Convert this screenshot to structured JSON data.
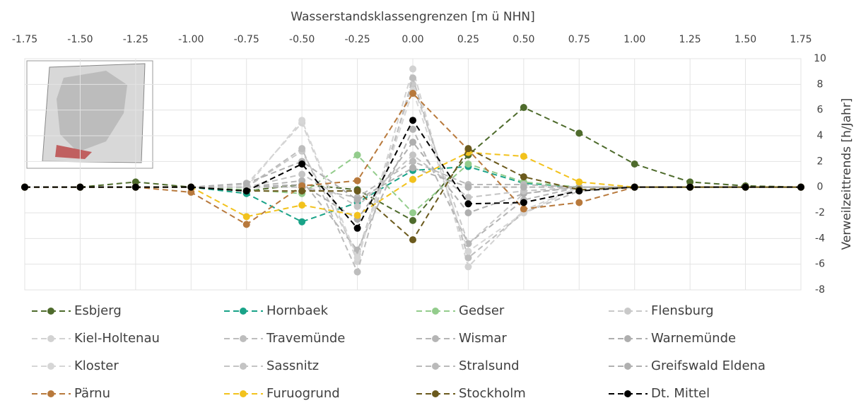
{
  "chart_data": {
    "type": "line",
    "x_label": "Wasserstandsklassengrenzen [m ü NHN]",
    "y_label": "Verweilzeittrends [h/Jahr]",
    "x": [
      -1.75,
      -1.5,
      -1.25,
      -1.0,
      -0.75,
      -0.5,
      -0.25,
      0.0,
      0.25,
      0.5,
      0.75,
      1.0,
      1.25,
      1.5,
      1.75
    ],
    "xlim": [
      -1.75,
      1.75
    ],
    "xticks": [
      {
        "value": -1.75,
        "label": "-1.75"
      },
      {
        "value": -1.5,
        "label": "-1.50"
      },
      {
        "value": -1.25,
        "label": "-1.25"
      },
      {
        "value": -1.0,
        "label": "-1.00"
      },
      {
        "value": -0.75,
        "label": "-0.75"
      },
      {
        "value": -0.5,
        "label": "-0.50"
      },
      {
        "value": -0.25,
        "label": "-0.25"
      },
      {
        "value": 0,
        "label": "0.00"
      },
      {
        "value": 0.25,
        "label": "0.25"
      },
      {
        "value": 0.5,
        "label": "0.50"
      },
      {
        "value": 0.75,
        "label": "0.75"
      },
      {
        "value": 1.0,
        "label": "1.00"
      },
      {
        "value": 1.25,
        "label": "1.25"
      },
      {
        "value": 1.5,
        "label": "1.50"
      },
      {
        "value": 1.75,
        "label": "1.75"
      }
    ],
    "ylim": [
      -8,
      10
    ],
    "yticks": [
      10,
      8,
      6,
      4,
      2,
      0,
      -2,
      -4,
      -6,
      -8
    ],
    "grid": true,
    "series": [
      {
        "name": "Esbjerg",
        "color": "#4e6b2c",
        "values": [
          0,
          0,
          0.4,
          0,
          -0.3,
          0.2,
          -0.2,
          -2.6,
          2.5,
          6.2,
          4.2,
          1.8,
          0.4,
          0.1,
          0
        ]
      },
      {
        "name": "Hornbaek",
        "color": "#19a388",
        "values": [
          0,
          0,
          0,
          0,
          -0.5,
          -2.7,
          -1.2,
          1.3,
          1.6,
          0.3,
          0,
          0,
          0,
          0,
          0
        ]
      },
      {
        "name": "Gedser",
        "color": "#93cc8c",
        "values": [
          0,
          0,
          0,
          0,
          -0.2,
          -0.5,
          2.5,
          -2.0,
          1.8,
          0.4,
          0,
          0,
          0,
          0,
          0
        ]
      },
      {
        "name": "Flensburg",
        "color": "#c9c9c9",
        "values": [
          0,
          0,
          0,
          0,
          0,
          2.8,
          -5.2,
          8.0,
          -4.4,
          -0.5,
          0,
          0,
          0,
          0,
          0
        ]
      },
      {
        "name": "Kiel-Holtenau",
        "color": "#d2d2d2",
        "values": [
          0,
          0,
          0,
          0,
          0.2,
          5.0,
          -5.8,
          9.2,
          -6.2,
          -1.8,
          0,
          0,
          0,
          0,
          0
        ]
      },
      {
        "name": "Travemünde",
        "color": "#bdbdbd",
        "values": [
          0,
          0,
          0,
          0,
          0,
          3.0,
          -6.6,
          8.5,
          -5.5,
          -2.0,
          -0.3,
          0,
          0,
          0,
          0
        ]
      },
      {
        "name": "Wismar",
        "color": "#b5b5b5",
        "values": [
          0,
          0,
          0,
          0,
          0,
          0.5,
          -4.9,
          4.5,
          -4.4,
          -1.0,
          0,
          0,
          0,
          0,
          0
        ]
      },
      {
        "name": "Warnemünde",
        "color": "#aeaeae",
        "values": [
          0,
          0,
          0,
          0,
          0,
          0.2,
          -2.5,
          3.5,
          -2.0,
          -0.5,
          0,
          0,
          0,
          0,
          0
        ]
      },
      {
        "name": "Kloster",
        "color": "#d6d6d6",
        "values": [
          0,
          0,
          0,
          0,
          0,
          5.2,
          -5.5,
          7.5,
          -5.0,
          -2.0,
          0,
          0,
          0,
          0,
          0
        ]
      },
      {
        "name": "Sassnitz",
        "color": "#c4c4c4",
        "values": [
          0,
          0,
          0,
          0,
          0,
          1.0,
          -1.5,
          2.5,
          -0.8,
          -0.3,
          0,
          0,
          0,
          0,
          0
        ]
      },
      {
        "name": "Stralsund",
        "color": "#bababa",
        "values": [
          0,
          0,
          0,
          0,
          0,
          0.0,
          -0.8,
          2.0,
          0.2,
          0.2,
          0,
          0,
          0,
          0,
          0
        ]
      },
      {
        "name": "Greifswald Eldena",
        "color": "#b0b0b0",
        "values": [
          0,
          0,
          0,
          0,
          0.3,
          2.0,
          -1.0,
          1.5,
          0.0,
          0,
          0,
          0,
          0,
          0,
          0
        ]
      },
      {
        "name": "Pärnu",
        "color": "#b8793c",
        "values": [
          0,
          0,
          0,
          -0.4,
          -2.9,
          0.1,
          0.5,
          7.3,
          2.9,
          -1.7,
          -1.2,
          0,
          0,
          0,
          0
        ]
      },
      {
        "name": "Furuogrund",
        "color": "#f2c21d",
        "values": [
          0,
          0,
          0,
          0,
          -2.3,
          -1.4,
          -2.2,
          0.6,
          2.7,
          2.4,
          0.4,
          0,
          0,
          0,
          0
        ]
      },
      {
        "name": "Stockholm",
        "color": "#6b5a1d",
        "values": [
          0,
          0,
          0,
          0,
          -0.3,
          -0.3,
          -0.3,
          -4.1,
          3.0,
          0.8,
          -0.2,
          0,
          0,
          0,
          0
        ]
      },
      {
        "name": "Dt. Mittel",
        "color": "#000000",
        "values": [
          0,
          0,
          0,
          0,
          -0.3,
          1.8,
          -3.2,
          5.2,
          -1.3,
          -1.2,
          -0.3,
          0,
          0,
          0,
          0
        ]
      }
    ]
  }
}
